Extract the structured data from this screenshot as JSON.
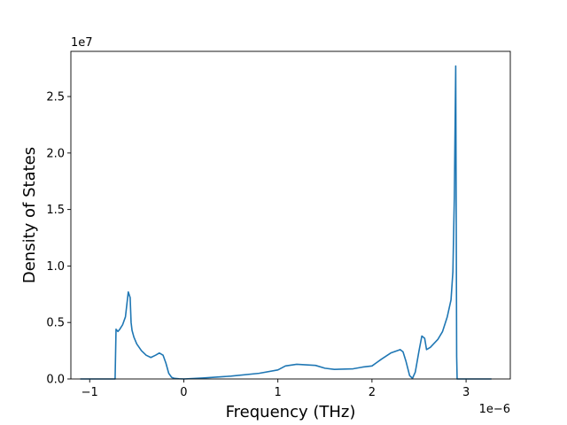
{
  "chart_data": {
    "type": "line",
    "title": "",
    "xlabel": "Frequency (THz)",
    "ylabel": "Density of States",
    "x_offset_text": "1e−6",
    "y_offset_text": "1e7",
    "xlim": [
      -1.2e-06,
      3.47e-06
    ],
    "ylim": [
      0,
      29000000.0
    ],
    "x_ticks": [
      -1e-06,
      0,
      1e-06,
      2e-06,
      3e-06
    ],
    "x_tick_labels": [
      "−1",
      "0",
      "1",
      "2",
      "3"
    ],
    "y_ticks": [
      0,
      5000000.0,
      10000000.0,
      15000000.0,
      20000000.0,
      25000000.0
    ],
    "y_tick_labels": [
      "0.0",
      "0.5",
      "1.0",
      "1.5",
      "2.0",
      "2.5"
    ],
    "grid": false,
    "legend": "none",
    "line_color": "#1f77b4",
    "series": [
      {
        "x": [
          -1.1e-06,
          -7.3e-07,
          -7.2e-07,
          -7e-07,
          -6.8e-07,
          -6.5e-07,
          -6.2e-07,
          -5.9e-07,
          -5.7e-07,
          -5.6e-07,
          -5.5e-07,
          -5.3e-07,
          -5e-07,
          -4.5e-07,
          -4e-07,
          -3.5e-07,
          -3e-07,
          -2.6e-07,
          -2.2e-07,
          -1.9e-07,
          -1.6e-07,
          -1.3e-07,
          -1e-07,
          -5e-08,
          0.0,
          2e-07,
          5e-07,
          8e-07,
          1e-06,
          1.08e-06,
          1.2e-06,
          1.4e-06,
          1.5e-06,
          1.6e-06,
          1.8e-06,
          1.9e-06,
          2e-06,
          2.05e-06,
          2.1e-06,
          2.2e-06,
          2.3e-06,
          2.33e-06,
          2.36e-06,
          2.4e-06,
          2.43e-06,
          2.46e-06,
          2.5e-06,
          2.53e-06,
          2.56e-06,
          2.58e-06,
          2.62e-06,
          2.7e-06,
          2.75e-06,
          2.8e-06,
          2.84e-06,
          2.86e-06,
          2.875e-06,
          2.89e-06,
          2.895e-06,
          2.9e-06,
          2.905e-06,
          3e-06,
          3.27e-06
        ],
        "y": [
          0,
          0,
          4400000.0,
          4200000.0,
          4400000.0,
          4800000.0,
          5500000.0,
          7700000.0,
          7200000.0,
          5000000.0,
          4300000.0,
          3700000.0,
          3100000.0,
          2500000.0,
          2100000.0,
          1900000.0,
          2100000.0,
          2300000.0,
          2100000.0,
          1400000.0,
          500000.0,
          150000.0,
          50000.0,
          20000.0,
          0,
          80000.0,
          250000.0,
          500000.0,
          800000.0,
          1150000.0,
          1300000.0,
          1200000.0,
          950000.0,
          850000.0,
          900000.0,
          1050000.0,
          1150000.0,
          1450000.0,
          1750000.0,
          2300000.0,
          2600000.0,
          2400000.0,
          1600000.0,
          300000.0,
          50000.0,
          600000.0,
          2500000.0,
          3800000.0,
          3600000.0,
          2600000.0,
          2800000.0,
          3500000.0,
          4200000.0,
          5500000.0,
          7000000.0,
          9500000.0,
          16000000.0,
          27700000.0,
          15000000.0,
          2000000.0,
          0,
          0,
          0
        ]
      }
    ]
  }
}
